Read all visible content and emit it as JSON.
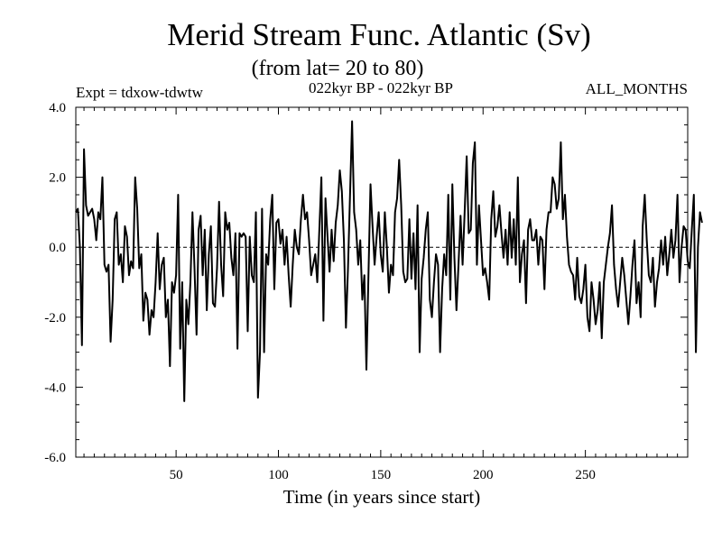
{
  "chart_data": {
    "type": "line",
    "title": "Merid Stream Func. Atlantic (Sv)",
    "subtitle": "(from lat= 20 to 80)",
    "expt_label": "Expt = tdxow-tdwtw",
    "period_label": "022kyr BP - 022kyr BP",
    "months_label": "ALL_MONTHS",
    "xlabel": "Time (in years since start)",
    "ylabel": "",
    "xlim": [
      1,
      300
    ],
    "ylim": [
      -6.0,
      4.0
    ],
    "x_ticks": [
      50,
      100,
      150,
      200,
      250
    ],
    "x_tick_labels": [
      "50",
      "100",
      "150",
      "200",
      "250"
    ],
    "y_ticks": [
      -6.0,
      -4.0,
      -2.0,
      0.0,
      2.0,
      4.0
    ],
    "y_tick_labels": [
      "-6.0",
      "-4.0",
      "-2.0",
      "0.0",
      "2.0",
      "4.0"
    ],
    "zero_line": "dashed",
    "grid": false,
    "legend": "none",
    "x_start": 1,
    "x_step": 1,
    "series": [
      {
        "color": "#000000",
        "values": [
          1.0,
          1.1,
          0.0,
          -2.8,
          2.8,
          1.2,
          0.9,
          1.0,
          1.1,
          0.8,
          0.2,
          1.0,
          0.8,
          2.0,
          -0.5,
          -0.7,
          -0.5,
          -2.7,
          -1.5,
          0.8,
          1.0,
          -0.5,
          -0.2,
          -1.0,
          0.6,
          0.3,
          -0.8,
          -0.4,
          -0.6,
          2.0,
          1.1,
          -0.6,
          -0.2,
          -2.1,
          -1.3,
          -1.5,
          -2.5,
          -1.8,
          -2.0,
          -1.0,
          0.4,
          -1.2,
          -0.5,
          -0.3,
          -2.0,
          -1.5,
          -3.4,
          -1.0,
          -1.3,
          -0.8,
          1.5,
          -2.9,
          -1.0,
          -4.4,
          -1.5,
          -2.2,
          -1.0,
          1.0,
          -0.6,
          -2.5,
          0.5,
          0.9,
          -0.8,
          0.5,
          -1.8,
          -0.2,
          0.6,
          -1.6,
          -1.7,
          -0.6,
          1.3,
          -0.5,
          -1.4,
          1.0,
          0.5,
          0.7,
          -0.3,
          -0.8,
          0.4,
          -2.9,
          0.4,
          0.3,
          0.4,
          0.3,
          -2.4,
          0.3,
          -0.8,
          -1.0,
          1.0,
          -4.3,
          -3.0,
          1.1,
          -3.0,
          -0.2,
          -0.5,
          0.8,
          1.5,
          -1.2,
          0.7,
          0.8,
          0.1,
          0.5,
          -0.5,
          0.3,
          -0.8,
          -1.7,
          -0.5,
          0.5,
          0.0,
          -0.2,
          0.8,
          1.5,
          0.8,
          1.0,
          0.2,
          -0.8,
          -0.5,
          -0.2,
          -1.0,
          0.5,
          2.0,
          -2.1,
          1.4,
          0.3,
          -0.7,
          0.5,
          -0.4,
          0.7,
          1.2,
          2.2,
          1.6,
          0.2,
          -2.3,
          -0.6,
          1.5,
          3.6,
          1.0,
          0.5,
          -0.5,
          0.2,
          -1.5,
          -0.8,
          -3.5,
          -0.8,
          1.8,
          0.6,
          -0.5,
          0.3,
          1.0,
          -0.2,
          -0.7,
          1.0,
          0.0,
          -1.3,
          -0.5,
          -0.8,
          1.0,
          1.4,
          2.5,
          1.2,
          -0.7,
          -1.0,
          -0.9,
          0.8,
          -0.9,
          0.4,
          -1.2,
          1.2,
          -3.0,
          -0.9,
          -0.3,
          0.5,
          1.0,
          -1.5,
          -2.0,
          -1.0,
          -0.2,
          -0.5,
          -3.0,
          -1.2,
          -0.2,
          -0.8,
          1.5,
          -1.5,
          1.8,
          -0.3,
          -1.8,
          -0.5,
          0.9,
          -0.5,
          1.0,
          2.6,
          0.4,
          0.5,
          2.4,
          3.0,
          -0.5,
          1.2,
          0.2,
          -0.8,
          -0.6,
          -1.0,
          -1.5,
          0.8,
          1.6,
          0.3,
          0.6,
          1.2,
          0.4,
          -0.3,
          0.5,
          -0.5,
          1.0,
          -0.3,
          0.8,
          -0.5,
          2.0,
          -1.0,
          -0.2,
          0.2,
          -1.6,
          0.5,
          0.8,
          0.2,
          0.2,
          0.5,
          -0.5,
          0.3,
          0.2,
          -1.2,
          0.5,
          1.0,
          1.0,
          2.0,
          1.8,
          1.1,
          1.4,
          3.0,
          0.8,
          1.5,
          0.3,
          -0.5,
          -0.7,
          -0.8,
          -1.5,
          -0.3,
          -1.4,
          -1.6,
          -1.2,
          -0.5,
          -2.0,
          -2.4,
          -1.0,
          -1.5,
          -2.2,
          -1.8,
          -1.0,
          -2.6,
          -1.0,
          -0.5,
          0.0,
          0.4,
          1.2,
          -0.5,
          -1.2,
          -1.7,
          -1.0,
          -0.3,
          -0.8,
          -1.5,
          -2.2,
          -1.4,
          -0.5,
          0.2,
          -1.6,
          -1.0,
          -2.0,
          0.6,
          1.5,
          0.2,
          -0.8,
          -1.0,
          -0.3,
          -1.7,
          -1.0,
          -0.6,
          0.2,
          -0.5,
          0.3,
          -0.8,
          -0.2,
          0.5,
          -0.3,
          0.2,
          1.5,
          -1.0,
          0.0,
          0.6,
          0.5,
          -0.4,
          -0.6,
          0.5,
          1.5,
          -3.0,
          0.0,
          1.0,
          0.7
        ]
      }
    ]
  }
}
